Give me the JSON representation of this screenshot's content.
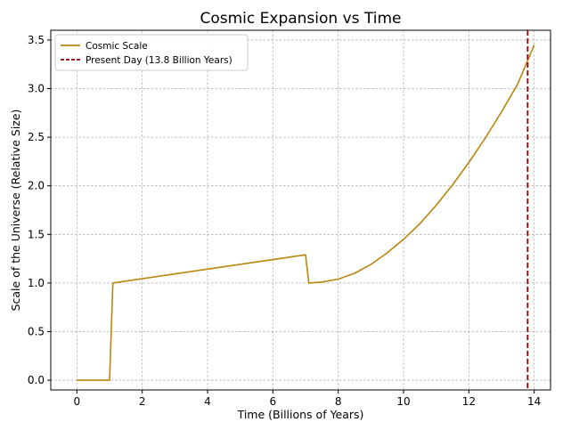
{
  "chart_data": {
    "type": "line",
    "title": "Cosmic Expansion vs Time",
    "xlabel": "Time (Billions of Years)",
    "ylabel": "Scale of the Universe (Relative Size)",
    "xlim": [
      -0.8,
      14.5
    ],
    "ylim": [
      -0.1,
      3.6
    ],
    "xticks": [
      0,
      2,
      4,
      6,
      8,
      10,
      12,
      14
    ],
    "yticks": [
      0.0,
      0.5,
      1.0,
      1.5,
      2.0,
      2.5,
      3.0,
      3.5
    ],
    "ytick_labels": [
      "0.0",
      "0.5",
      "1.0",
      "1.5",
      "2.0",
      "2.5",
      "3.0",
      "3.5"
    ],
    "grid": true,
    "legend_position": "top-left",
    "series": [
      {
        "name": "Cosmic Scale",
        "color": "#b8860b",
        "style": "solid",
        "x": [
          0,
          1.0,
          1.1,
          7.0,
          7.1,
          7.5,
          8.0,
          8.5,
          9.0,
          9.5,
          10.0,
          10.5,
          11.0,
          11.5,
          12.0,
          12.5,
          13.0,
          13.5,
          14.0
        ],
        "y": [
          0.0,
          0.0,
          1.0,
          1.29,
          1.0,
          1.01,
          1.04,
          1.1,
          1.19,
          1.31,
          1.45,
          1.61,
          1.8,
          2.01,
          2.24,
          2.49,
          2.76,
          3.05,
          3.45
        ]
      }
    ],
    "reference_lines": [
      {
        "name": "Present Day (13.8 Billion Years)",
        "orientation": "vertical",
        "x": 13.8,
        "color": "#8b0000",
        "style": "dashed"
      }
    ]
  }
}
